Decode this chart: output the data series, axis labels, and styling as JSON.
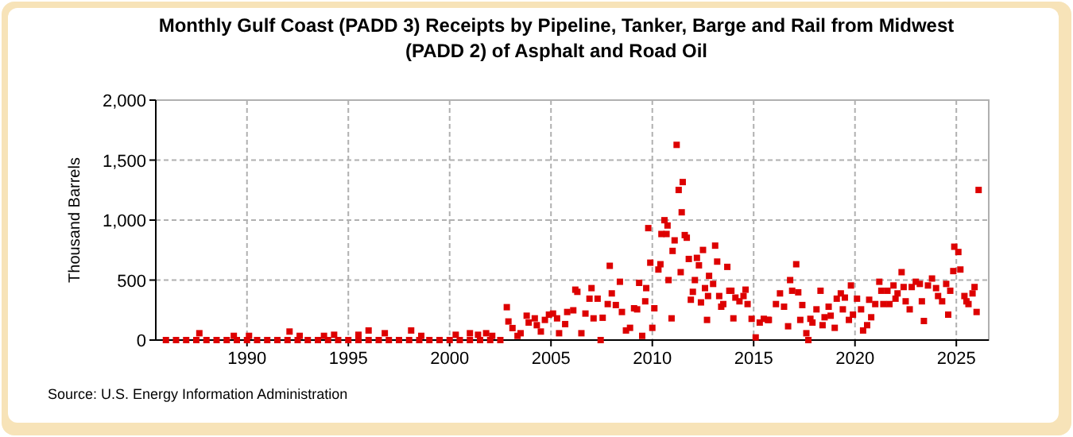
{
  "chart_data": {
    "type": "scatter",
    "title": "Monthly Gulf Coast (PADD 3) Receipts by Pipeline, Tanker, Barge and Rail from Midwest (PADD 2) of Asphalt and Road Oil",
    "ylabel": "Thousand Barrels",
    "annotations": [
      "Source: U.S. Energy Information Administration"
    ],
    "xlim": [
      1985.5,
      2026.6
    ],
    "xticks": [
      1990,
      1995,
      2000,
      2005,
      2010,
      2015,
      2020,
      2025
    ],
    "ylim": [
      0,
      2000
    ],
    "yticks": [
      0,
      500,
      {
        "value": 1000,
        "label": "1,000"
      },
      {
        "value": 1500,
        "label": "1,500"
      },
      {
        "value": 2000,
        "label": "2,000"
      }
    ],
    "grid": true,
    "marker": "square",
    "series": [
      {
        "color": "#dd0000",
        "x": [
          1986,
          1986.5,
          1987,
          1987.5,
          1988,
          1988.5,
          1989,
          1989.5,
          1990,
          1990.5,
          1991,
          1991.5,
          1992,
          1992.5,
          1993,
          1993.5,
          1994,
          1994.5,
          1995,
          1995.5,
          1996,
          1996.5,
          1997,
          1997.5,
          1998,
          1998.5,
          1999,
          1999.5,
          2000,
          2000.5,
          2001,
          2001.5,
          2002,
          2002.5,
          1987.65,
          1989.35,
          1990.1,
          1992.1,
          1992.6,
          1993.8,
          1994.3,
          1995.5,
          1996,
          1996.8,
          1998.1,
          1998.6,
          2000.3,
          2001,
          2001.4,
          2001.8,
          2002.1,
          2002.82,
          2002.9,
          2003.1,
          2003.35,
          2003.5,
          2003.8,
          2003.9,
          2004.2,
          2004.3,
          2004.5,
          2004.7,
          2004.9,
          2005.1,
          2005.3,
          2005.4,
          2005.7,
          2005.8,
          2006.1,
          2006.2,
          2006.3,
          2006.5,
          2006.7,
          2006.9,
          2007,
          2007.1,
          2007.3,
          2007.45,
          2007.55,
          2007.8,
          2007.9,
          2008,
          2008.2,
          2008.4,
          2008.5,
          2008.7,
          2008.9,
          2009.1,
          2009.25,
          2009.35,
          2009.5,
          2009.65,
          2009.7,
          2009.8,
          2009.9,
          2010,
          2010.1,
          2010.3,
          2010.4,
          2010.45,
          2010.6,
          2010.7,
          2010.75,
          2010.8,
          2010.95,
          2011,
          2011.1,
          2011.2,
          2011.3,
          2011.4,
          2011.45,
          2011.5,
          2011.6,
          2011.7,
          2011.8,
          2011.9,
          2012,
          2012.1,
          2012.2,
          2012.3,
          2012.4,
          2012.5,
          2012.6,
          2012.7,
          2012.75,
          2012.8,
          2013,
          2013.1,
          2013.2,
          2013.3,
          2013.4,
          2013.5,
          2013.7,
          2013.8,
          2013.9,
          2014,
          2014.1,
          2014.3,
          2014.5,
          2014.6,
          2014.7,
          2014.9,
          2015.1,
          2015.3,
          2015.5,
          2015.7,
          2015.75,
          2016.1,
          2016.3,
          2016.5,
          2016.7,
          2016.8,
          2016.9,
          2017.1,
          2017.2,
          2017.3,
          2017.4,
          2017.6,
          2017.7,
          2017.8,
          2017.9,
          2018.1,
          2018.3,
          2018.4,
          2018.5,
          2018.7,
          2018.8,
          2019,
          2019.1,
          2019.3,
          2019.4,
          2019.5,
          2019.7,
          2019.8,
          2019.9,
          2020.1,
          2020.3,
          2020.4,
          2020.6,
          2020.7,
          2020.8,
          2021,
          2021.2,
          2021.3,
          2021.4,
          2021.6,
          2021.7,
          2021.9,
          2022,
          2022.1,
          2022.3,
          2022.4,
          2022.5,
          2022.7,
          2022.8,
          2023,
          2023.2,
          2023.3,
          2023.4,
          2023.6,
          2023.8,
          2024,
          2024.1,
          2024.3,
          2024.5,
          2024.6,
          2024.7,
          2024.85,
          2024.9,
          2025.1,
          2025.2,
          2025.4,
          2025.5,
          2025.6,
          2025.8,
          2025.9,
          2026,
          2026.1
        ],
        "values": [
          0,
          0,
          0,
          0,
          0,
          0,
          0,
          0,
          0,
          0,
          0,
          0,
          0,
          0,
          0,
          0,
          0,
          0,
          0,
          0,
          0,
          0,
          0,
          0,
          0,
          0,
          0,
          0,
          0,
          0,
          0,
          0,
          0,
          0,
          57,
          35,
          35,
          71,
          35,
          35,
          44,
          44,
          80,
          57,
          80,
          35,
          44,
          57,
          44,
          57,
          35,
          274,
          155,
          100,
          35,
          57,
          203,
          146,
          181,
          124,
          71,
          168,
          212,
          221,
          181,
          57,
          133,
          234,
          248,
          420,
          402,
          57,
          221,
          345,
          433,
          181,
          345,
          0,
          186,
          300,
          619,
          389,
          292,
          486,
          234,
          80,
          102,
          265,
          256,
          477,
          35,
          323,
          433,
          933,
          645,
          102,
          265,
          588,
          632,
          884,
          999,
          884,
          955,
          500,
          181,
          743,
          831,
          1627,
          1251,
          566,
          1065,
          1317,
          875,
          853,
          676,
          336,
          402,
          500,
          685,
          623,
          314,
          751,
          433,
          168,
          367,
          535,
          468,
          787,
          654,
          367,
          278,
          300,
          610,
          411,
          411,
          181,
          354,
          323,
          367,
          420,
          300,
          177,
          22,
          146,
          177,
          168,
          168,
          300,
          389,
          278,
          115,
          500,
          411,
          632,
          398,
          168,
          292,
          57,
          0,
          177,
          146,
          256,
          411,
          124,
          190,
          278,
          203,
          102,
          345,
          389,
          256,
          354,
          168,
          455,
          212,
          345,
          256,
          80,
          124,
          336,
          190,
          300,
          486,
          411,
          300,
          411,
          300,
          455,
          345,
          389,
          566,
          442,
          323,
          256,
          442,
          486,
          468,
          323,
          159,
          455,
          513,
          433,
          367,
          323,
          468,
          212,
          411,
          575,
          778,
          734,
          588,
          367,
          323,
          300,
          389,
          442,
          234,
          1251
        ]
      }
    ]
  }
}
